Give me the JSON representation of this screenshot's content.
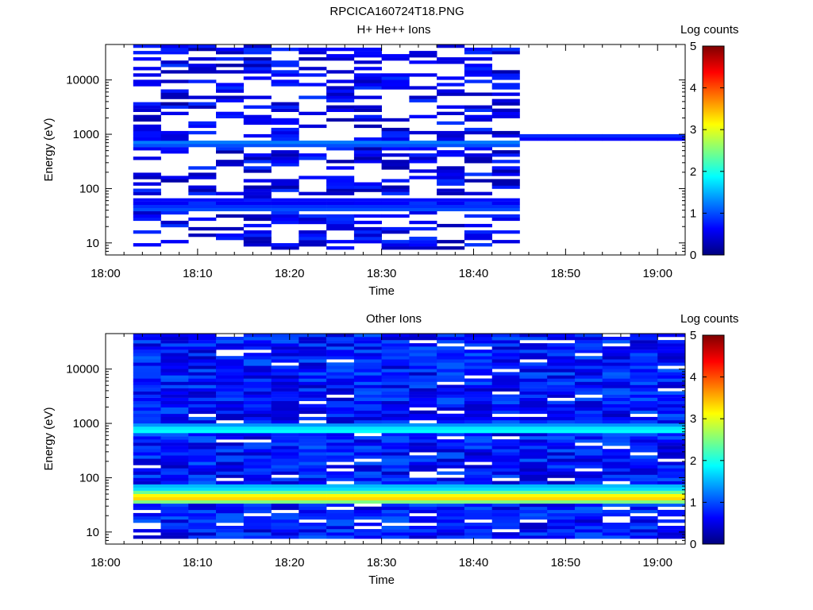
{
  "figure_title": "RPCICA160724T18.PNG",
  "colors": {
    "colormap": [
      "#00007f",
      "#0000ff",
      "#007fff",
      "#00ffff",
      "#7fff7f",
      "#ffff00",
      "#ff7f00",
      "#ff0000",
      "#7f0000"
    ],
    "background": "#ffffff",
    "axis": "#000000"
  },
  "chart_data": [
    {
      "type": "heatmap",
      "title": "H+ He++ Ions",
      "xlabel": "Time",
      "ylabel": "Energy (eV)",
      "colorbar_label": "Log counts",
      "x_tick_labels": [
        "18:00",
        "18:10",
        "18:20",
        "18:30",
        "18:40",
        "18:50",
        "19:00"
      ],
      "y_tick_labels": [
        "10",
        "100",
        "1000",
        "10000"
      ],
      "colorbar_tick_labels": [
        "0",
        "1",
        "2",
        "3",
        "4",
        "5"
      ],
      "xlim": [
        "18:00",
        "19:03"
      ],
      "ylim_eV": [
        6,
        45000
      ],
      "y_scale": "log",
      "zlim": [
        0,
        5
      ],
      "time_bins": [
        "18:03",
        "18:06",
        "18:09",
        "18:12",
        "18:15",
        "18:18",
        "18:21",
        "18:24",
        "18:27",
        "18:30",
        "18:33",
        "18:36",
        "18:39",
        "18:42",
        "18:45",
        "18:48",
        "18:51",
        "18:54",
        "18:57",
        "19:00"
      ],
      "notes": "Sparse low-count returns up to 18:44; after 18:45 only a narrow band near 800-900 eV is present.",
      "bands": [
        {
          "energy_eV": 650,
          "log_counts": 1.3,
          "time_range": [
            "18:03",
            "18:45"
          ]
        },
        {
          "energy_eV": 850,
          "log_counts": 0.9,
          "time_range": [
            "18:45",
            "19:03"
          ]
        },
        {
          "energy_eV": 40,
          "log_counts": 1.1,
          "time_range": [
            "18:03",
            "18:45"
          ]
        },
        {
          "energy_eV": 55,
          "log_counts": 0.8,
          "time_range": [
            "18:03",
            "18:45"
          ]
        }
      ]
    },
    {
      "type": "heatmap",
      "title": "Other Ions",
      "xlabel": "Time",
      "ylabel": "Energy (eV)",
      "colorbar_label": "Log counts",
      "x_tick_labels": [
        "18:00",
        "18:10",
        "18:20",
        "18:30",
        "18:40",
        "18:50",
        "19:00"
      ],
      "y_tick_labels": [
        "10",
        "100",
        "1000",
        "10000"
      ],
      "colorbar_tick_labels": [
        "0",
        "1",
        "2",
        "3",
        "4",
        "5"
      ],
      "xlim": [
        "18:00",
        "19:03"
      ],
      "ylim_eV": [
        6,
        45000
      ],
      "y_scale": "log",
      "zlim": [
        0,
        5
      ],
      "time_bins": [
        "18:03",
        "18:06",
        "18:09",
        "18:12",
        "18:15",
        "18:18",
        "18:21",
        "18:24",
        "18:27",
        "18:30",
        "18:33",
        "18:36",
        "18:39",
        "18:42",
        "18:45",
        "18:48",
        "18:51",
        "18:54",
        "18:57",
        "19:00"
      ],
      "notes": "Broad background of ~0.5-1 log counts across all energies; strong band near 35-45 eV and moderate band near 650-800 eV.",
      "bands": [
        {
          "energy_eV": 40,
          "log_counts": 3.4,
          "time_range": [
            "18:03",
            "19:03"
          ]
        },
        {
          "energy_eV": 35,
          "log_counts": 2.6,
          "time_range": [
            "18:03",
            "19:03"
          ]
        },
        {
          "energy_eV": 45,
          "log_counts": 2.7,
          "time_range": [
            "18:03",
            "19:03"
          ]
        },
        {
          "energy_eV": 60,
          "log_counts": 1.8,
          "time_range": [
            "18:03",
            "19:03"
          ]
        },
        {
          "energy_eV": 700,
          "log_counts": 2.0,
          "time_range": [
            "18:03",
            "19:03"
          ]
        },
        {
          "energy_eV": 800,
          "log_counts": 1.6,
          "time_range": [
            "18:03",
            "19:03"
          ]
        }
      ]
    }
  ]
}
